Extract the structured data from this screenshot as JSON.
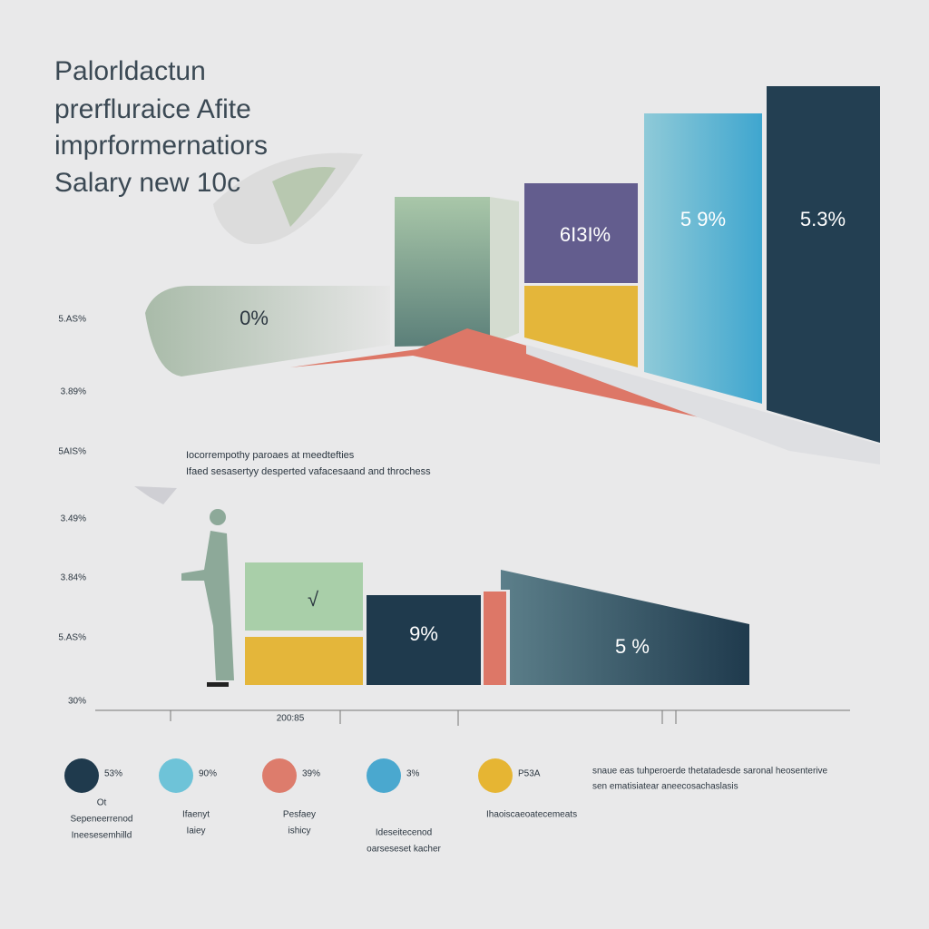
{
  "header": {
    "title_lines": [
      "Palorldactun",
      "prerfluraice Afite",
      "imprformernatiors",
      "Salary new 10c"
    ]
  },
  "y_axis_labels": [
    "5.AS%",
    "3.89%",
    "5AIS%",
    "3.49%",
    "3.84%",
    "5.AS%",
    "30%"
  ],
  "upper_bars": {
    "labels": [
      "0%",
      "6I3I%",
      "5 9%",
      "5.3%"
    ]
  },
  "caption": [
    "Iocorrempothy paroaes at meedtefties",
    "Ifaed sesasertyy desperted vafacesaand and throchess"
  ],
  "lower_bars": {
    "labels": [
      "√",
      "9%",
      "5 %"
    ]
  },
  "x_label": "200:85",
  "legend": [
    {
      "value": "53%",
      "caption": [
        "Ot",
        "Sepeneerrenod",
        "Ineesesemhilld"
      ]
    },
    {
      "value": "90%",
      "caption": [
        "Ifaenyt",
        "Iaiey"
      ]
    },
    {
      "value": "39%",
      "caption": [
        "Pesfaey",
        "ishicy"
      ]
    },
    {
      "value": "3%",
      "caption": [
        "Ideseitecenod",
        "oarseseset kacher"
      ]
    },
    {
      "value": "P53A",
      "caption": [
        "Ihaoiscaeoatecemeats"
      ]
    }
  ],
  "note": [
    "snaue eas tuhperoerde thetatadesde saronal heosenterive",
    "sen ematisiatear aneecosachaslasis"
  ]
}
